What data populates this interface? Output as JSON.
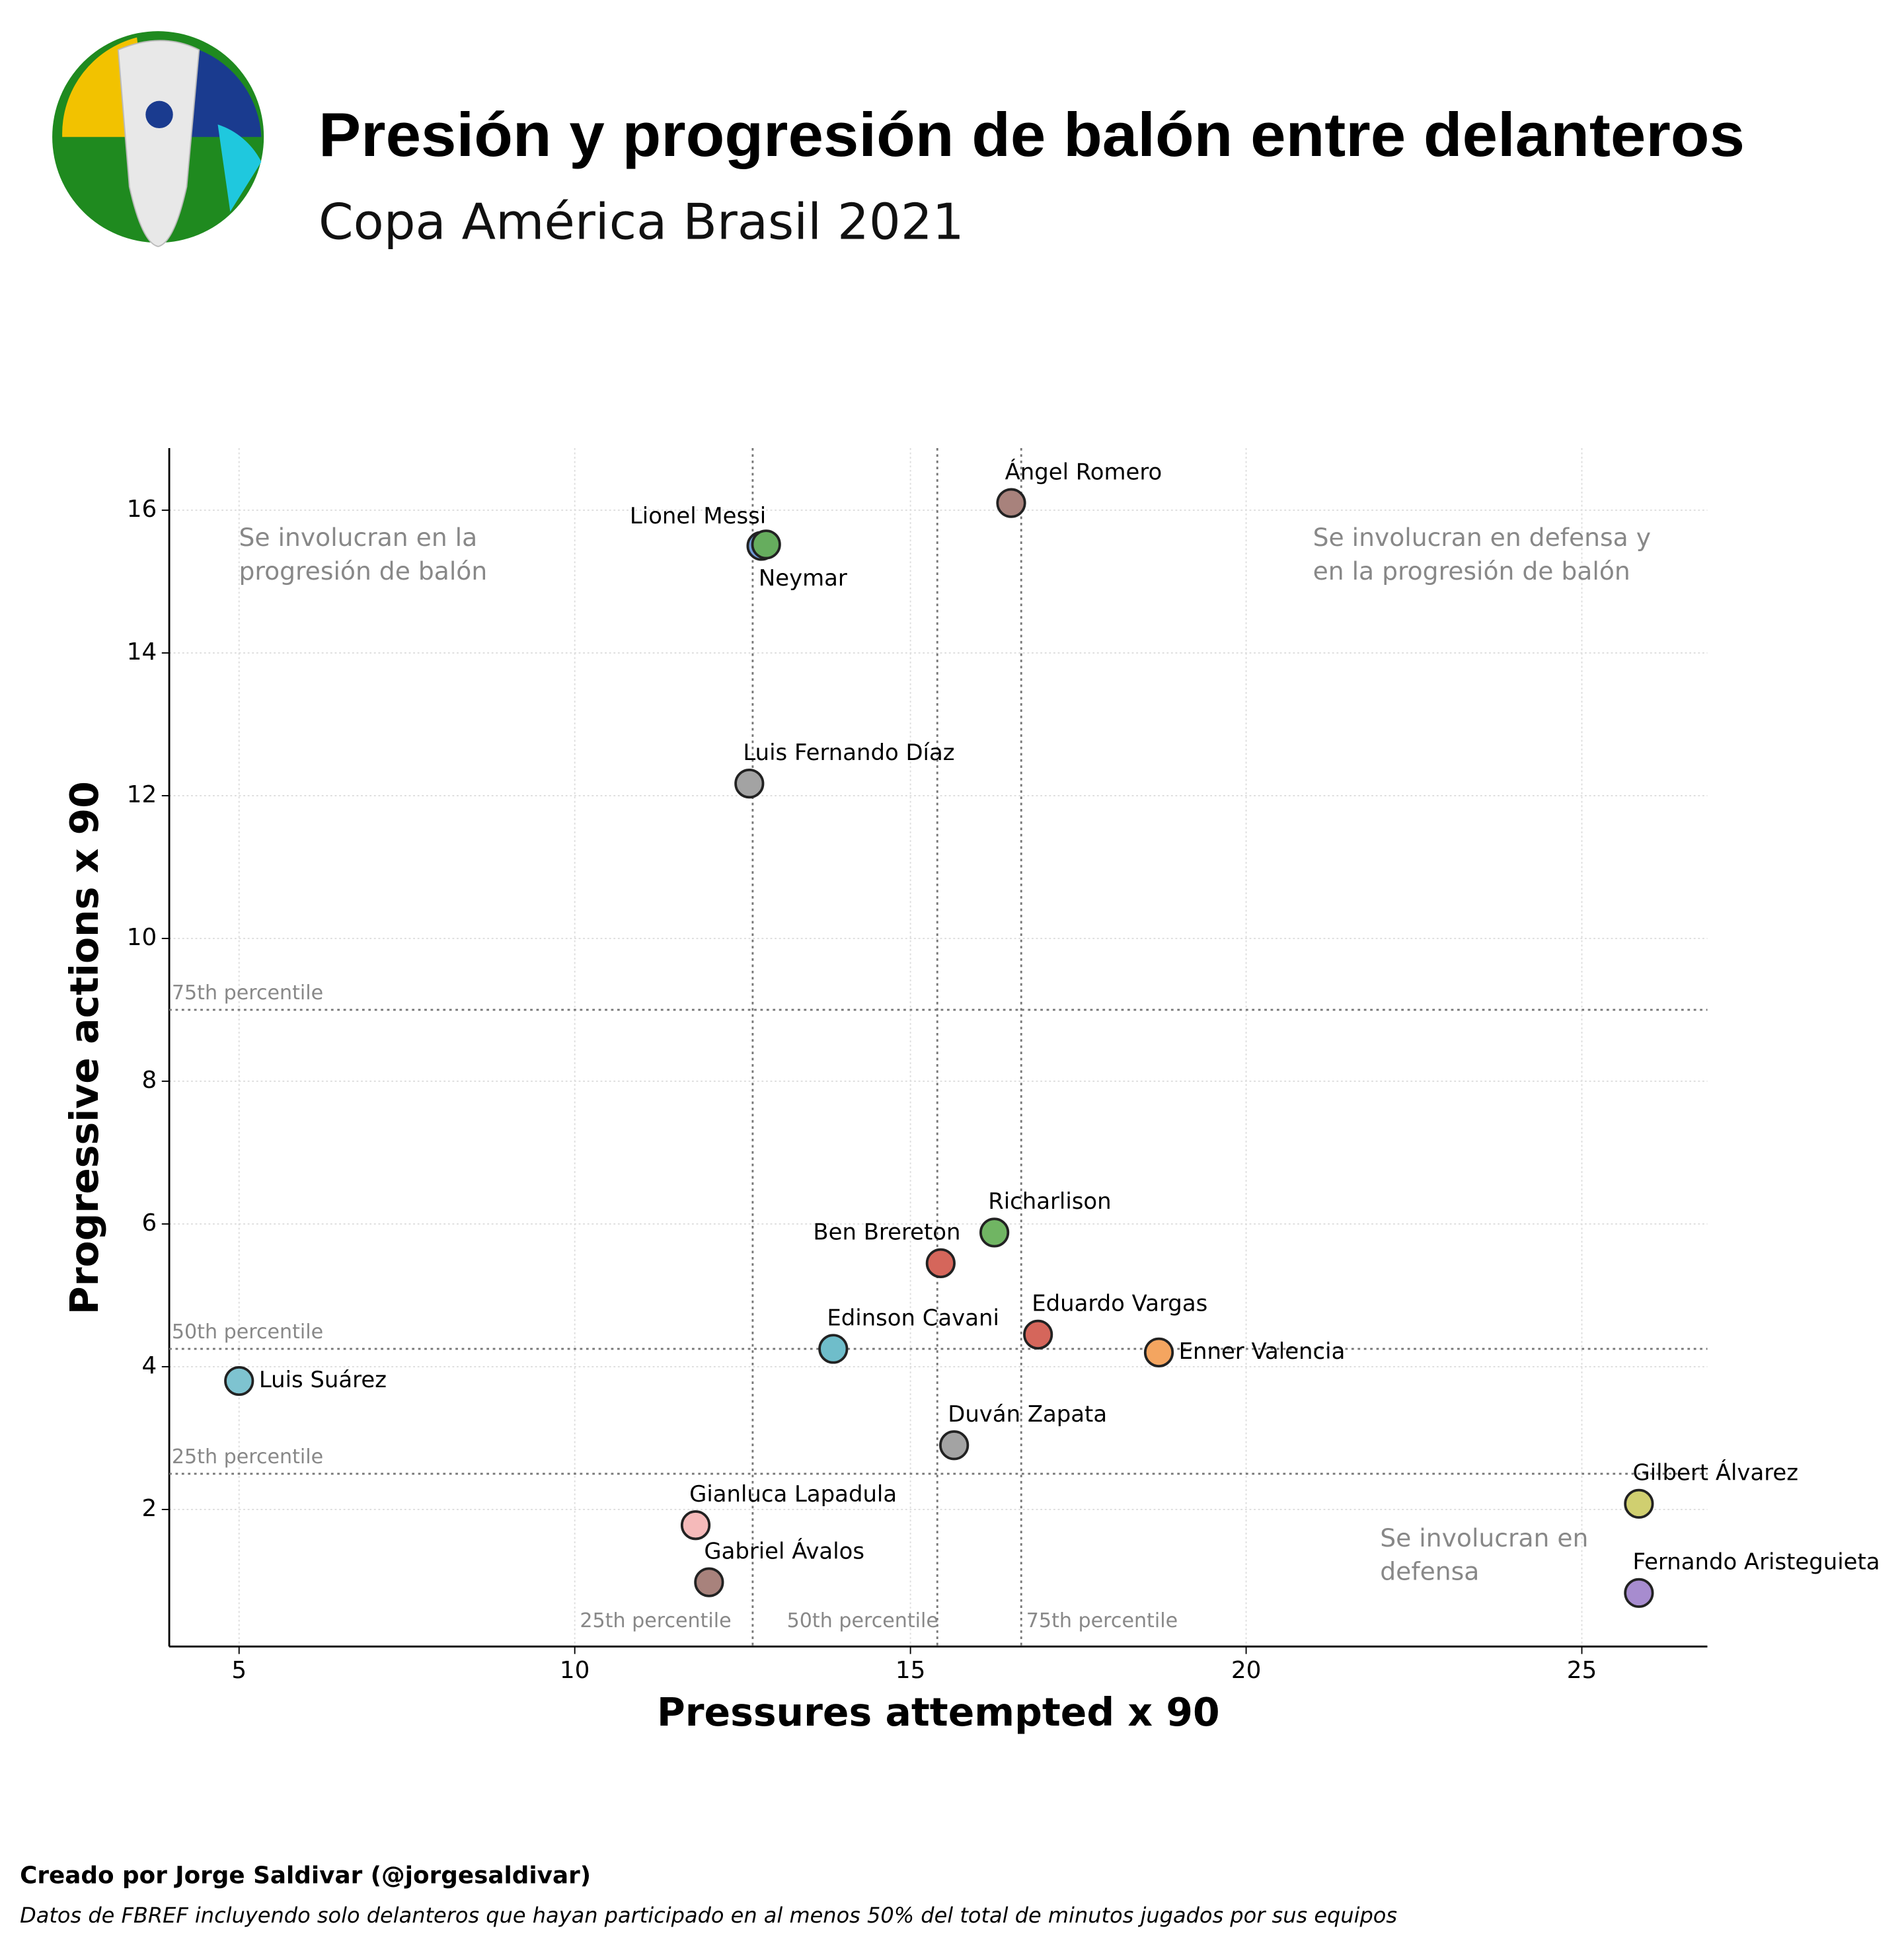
{
  "chart_data": {
    "type": "scatter",
    "title": "Presión y progresión de balón entre delanteros",
    "subtitle": "Copa América Brasil 2021",
    "xlabel": "Pressures attempted x 90",
    "ylabel": "Progressive actions x 90",
    "xlim": [
      3.96,
      26.87
    ],
    "ylim": [
      0.08,
      16.87
    ],
    "xticks": [
      5,
      10,
      15,
      20,
      25
    ],
    "yticks": [
      2,
      4,
      6,
      8,
      10,
      12,
      14,
      16
    ],
    "grid": true,
    "points": [
      {
        "name": "Luis Suárez",
        "x": 5.0,
        "y": 3.8,
        "color": "#7ec3d0"
      },
      {
        "name": "Lionel Messi",
        "x": 12.78,
        "y": 15.5,
        "color": "#6f9ad6"
      },
      {
        "name": "Neymar",
        "x": 12.85,
        "y": 15.52,
        "color": "#66ad5e"
      },
      {
        "name": "Ángel Romero",
        "x": 16.5,
        "y": 16.1,
        "color": "#a8827c"
      },
      {
        "name": "Luis Fernando Díaz",
        "x": 12.6,
        "y": 12.17,
        "color": "#a3a3a3"
      },
      {
        "name": "Richarlison",
        "x": 16.25,
        "y": 5.88,
        "color": "#70b563"
      },
      {
        "name": "Ben Brereton",
        "x": 15.45,
        "y": 5.45,
        "color": "#d5665b"
      },
      {
        "name": "Edinson Cavani",
        "x": 13.85,
        "y": 4.25,
        "color": "#6fbdca"
      },
      {
        "name": "Eduardo Vargas",
        "x": 16.9,
        "y": 4.45,
        "color": "#d5665b"
      },
      {
        "name": "Enner Valencia",
        "x": 18.7,
        "y": 4.2,
        "color": "#f4a560"
      },
      {
        "name": "Duván Zapata",
        "x": 15.65,
        "y": 2.9,
        "color": "#a3a3a3"
      },
      {
        "name": "Gianluca Lapadula",
        "x": 11.8,
        "y": 1.78,
        "color": "#f5baba"
      },
      {
        "name": "Gabriel Ávalos",
        "x": 12.0,
        "y": 0.98,
        "color": "#a8827c"
      },
      {
        "name": "Gilbert Álvarez",
        "x": 25.85,
        "y": 2.08,
        "color": "#d0cf70"
      },
      {
        "name": "Fernando Aristeguieta",
        "x": 25.85,
        "y": 0.83,
        "color": "#a78ccf"
      }
    ],
    "x_percentiles": [
      {
        "label": "25th percentile",
        "value": 12.65
      },
      {
        "label": "50th percentile",
        "value": 15.4
      },
      {
        "label": "75th percentile",
        "value": 16.65
      }
    ],
    "y_percentiles": [
      {
        "label": "25th percentile",
        "value": 2.5
      },
      {
        "label": "50th percentile",
        "value": 4.25
      },
      {
        "label": "75th percentile",
        "value": 9.0
      }
    ],
    "annotations": [
      [
        "Se involucran en la",
        "progresión de balón"
      ],
      [
        "Se involucran en defensa y",
        "en la progresión de balón"
      ],
      [
        "Se involucran en",
        "defensa"
      ]
    ],
    "credit": "Creado por Jorge Saldivar (@jorgesaldivar)",
    "source": "Datos de FBREF incluyendo solo delanteros que hayan participado en al menos 50% del total de minutos jugados por sus equipos"
  }
}
